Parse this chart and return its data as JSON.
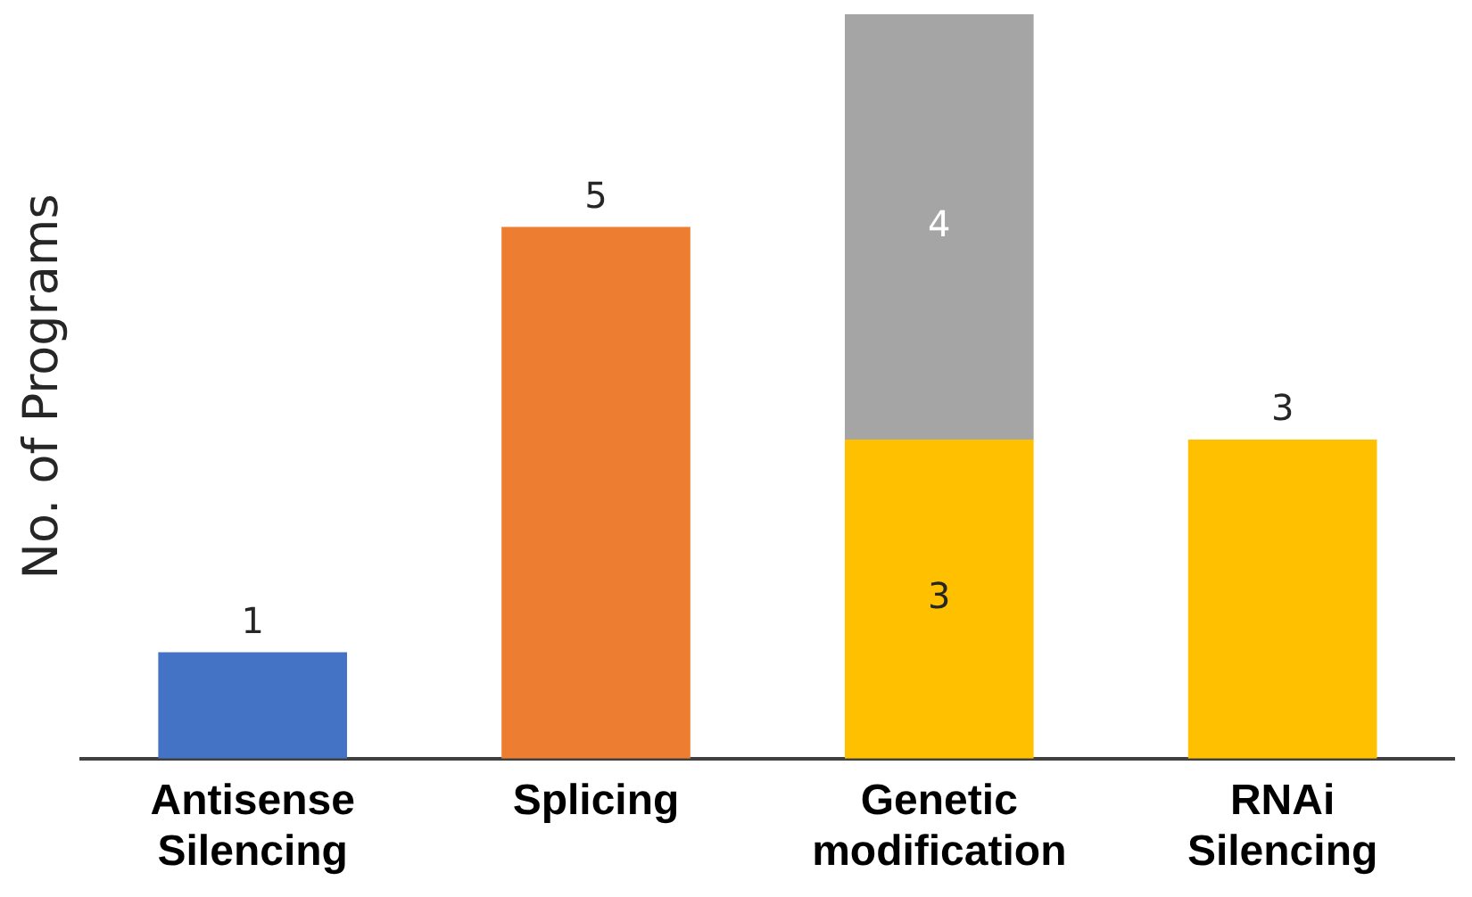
{
  "chart_data": {
    "type": "bar",
    "ylabel": "No. of Programs",
    "categories": [
      "Antisense Silencing",
      "Splicing",
      "Genetic modification",
      "RNAi Silencing"
    ],
    "stacked": true,
    "data_labels": true,
    "tick_labels": "x",
    "grid": false,
    "legend": false,
    "series": [
      {
        "colors": [
          "#4472c4",
          "#ed7d31",
          "#ffc000",
          "#ffc000"
        ],
        "values": [
          1,
          5,
          3,
          3
        ]
      },
      {
        "color": "#a5a5a5",
        "values": [
          null,
          null,
          4,
          null
        ]
      }
    ]
  }
}
